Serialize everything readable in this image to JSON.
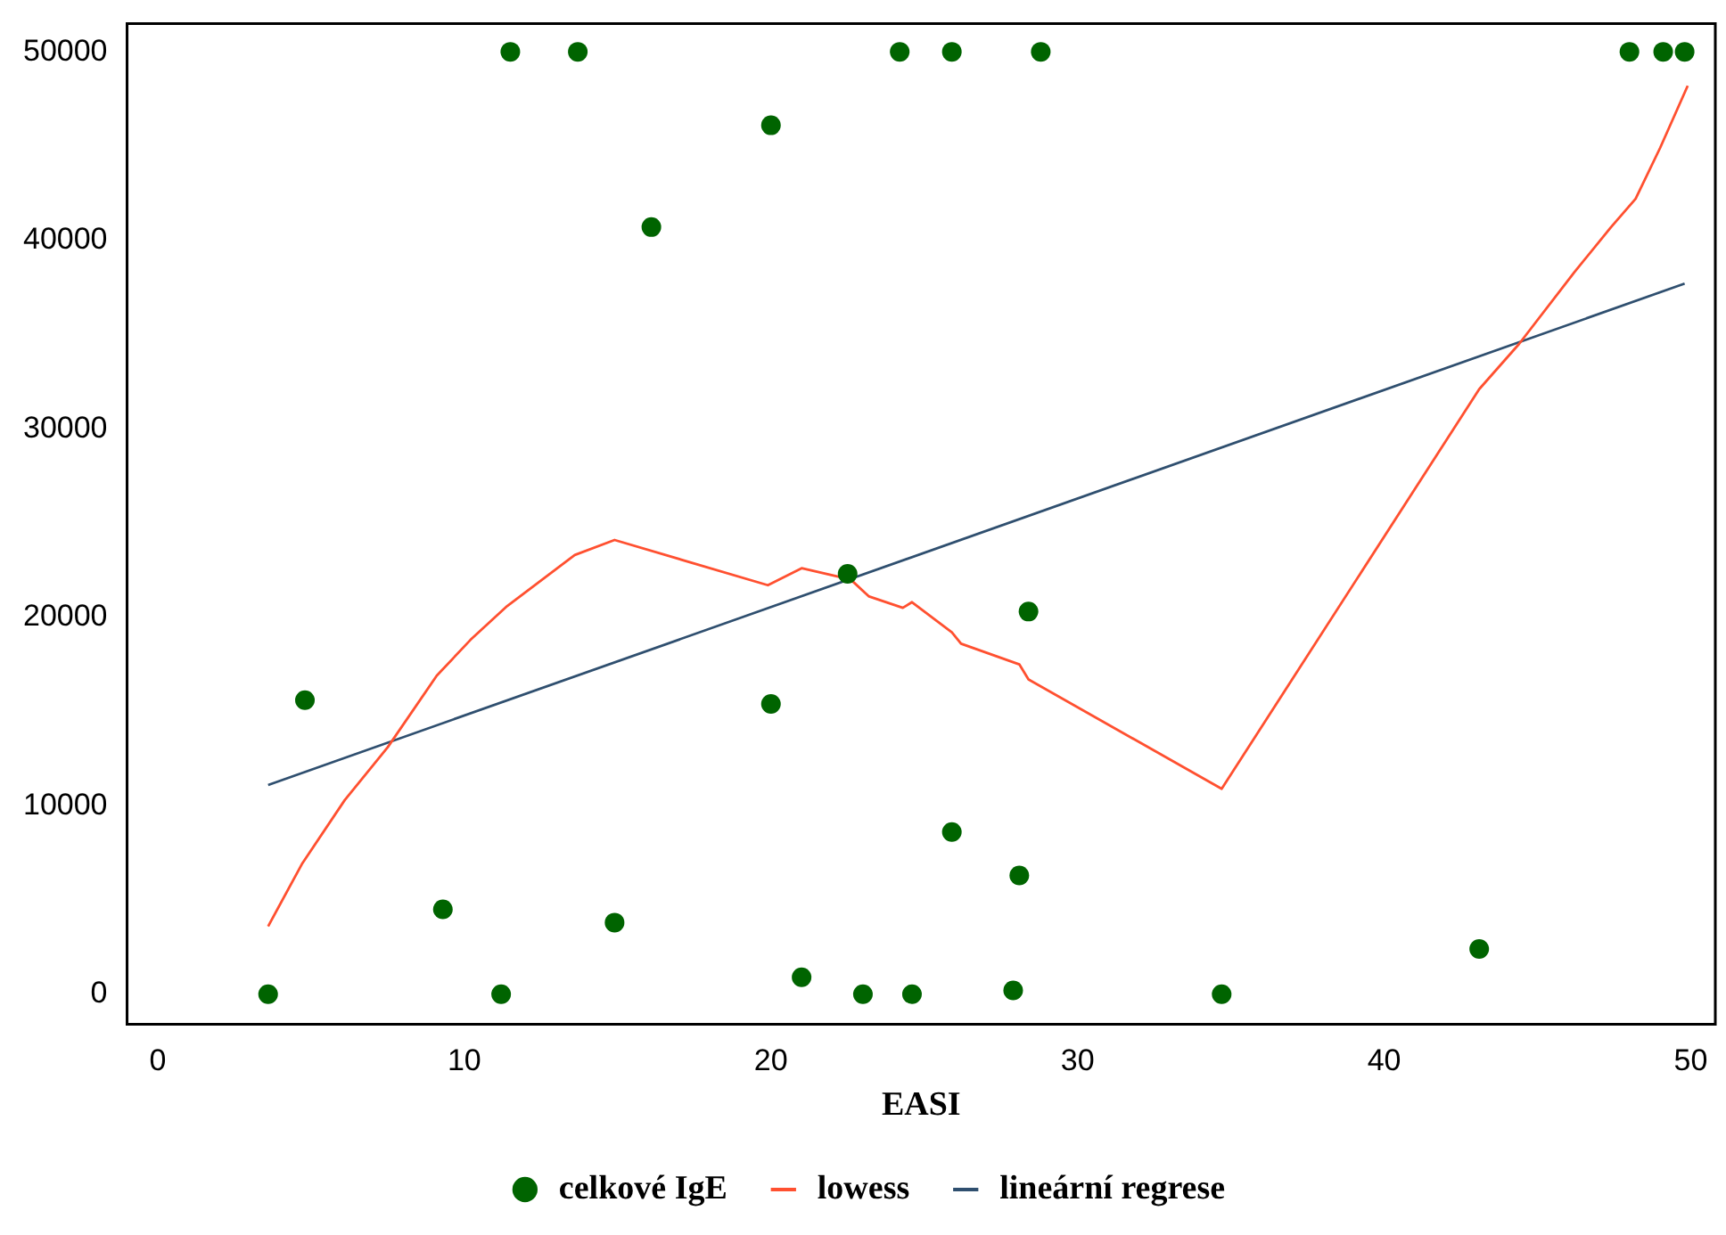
{
  "chart_data": {
    "type": "scatter",
    "xlabel": "EASI",
    "xlim": [
      -1,
      50.8
    ],
    "ylim": [
      -1600,
      51500
    ],
    "xticks": [
      0,
      10,
      20,
      30,
      40,
      50
    ],
    "yticks": [
      0,
      10000,
      20000,
      30000,
      40000,
      50000
    ],
    "grid": false,
    "legend": "bottom",
    "marker": "circle",
    "series": [
      {
        "name": "celkové IgE",
        "color": "#006400",
        "x": [
          3.6,
          4.8,
          9.3,
          11.2,
          11.5,
          13.7,
          14.9,
          16.1,
          20.0,
          20.0,
          21.0,
          22.5,
          23.0,
          24.2,
          24.6,
          25.9,
          25.9,
          27.9,
          28.1,
          28.4,
          28.8,
          34.7,
          43.1,
          48.0,
          49.1,
          49.8
        ],
        "values": [
          0,
          15600,
          4500,
          0,
          50000,
          50000,
          3800,
          40700,
          46100,
          15400,
          900,
          22300,
          0,
          50000,
          0,
          50000,
          8600,
          200,
          6300,
          20300,
          50000,
          0,
          2400,
          50000,
          50000,
          50000
        ]
      },
      {
        "name": "lowess",
        "type": "line",
        "marker": "none",
        "color": "#ff5030",
        "x": [
          3.6,
          4.7,
          6.1,
          7.5,
          9.1,
          10.2,
          11.4,
          13.6,
          14.9,
          19.9,
          21.0,
          22.6,
          23.2,
          24.3,
          24.6,
          25.9,
          26.2,
          28.1,
          28.4,
          34.7,
          43.1,
          44.4,
          46.2,
          47.4,
          48.2,
          49.0,
          49.9
        ],
        "values": [
          3600,
          6900,
          10300,
          13100,
          16900,
          18800,
          20600,
          23300,
          24100,
          21700,
          22600,
          22000,
          21100,
          20500,
          20800,
          19200,
          18600,
          17500,
          16700,
          10900,
          32100,
          34500,
          38300,
          40700,
          42200,
          44900,
          48200
        ]
      },
      {
        "name": "lineární regrese",
        "type": "line",
        "marker": "none",
        "color": "#2f4f6f",
        "x": [
          3.6,
          49.8
        ],
        "values": [
          11100,
          37700
        ]
      }
    ]
  }
}
